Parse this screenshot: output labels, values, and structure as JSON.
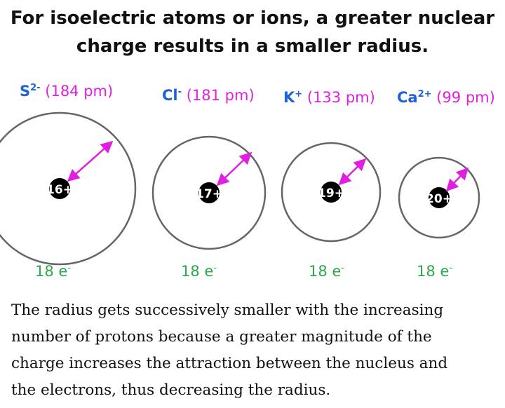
{
  "title": {
    "line1": "For isoelectric atoms or ions, a greater nuclear",
    "line2": "charge results in a smaller radius."
  },
  "ions": [
    {
      "symbol": "S",
      "charge": "2-",
      "radius_label": "(184 pm)",
      "nucleus_label": "16+",
      "electrons_value": "18 e",
      "electrons_sup": "-",
      "radius_pm": 184
    },
    {
      "symbol": "Cl",
      "charge": "-",
      "radius_label": "(181 pm)",
      "nucleus_label": "17+",
      "electrons_value": "18 e",
      "electrons_sup": "-",
      "radius_pm": 181
    },
    {
      "symbol": "K",
      "charge": "+",
      "radius_label": "(133 pm)",
      "nucleus_label": "19+",
      "electrons_value": "18 e",
      "electrons_sup": "-",
      "radius_pm": 133
    },
    {
      "symbol": "Ca",
      "charge": "2+",
      "radius_label": "(99 pm)",
      "nucleus_label": "20+",
      "electrons_value": "18 e",
      "electrons_sup": "-",
      "radius_pm": 99
    }
  ],
  "explanation": {
    "line1": "The radius gets successively smaller with the increasing",
    "line2": "number of protons because a greater magnitude of the",
    "line3": "charge increases the attraction between the nucleus and",
    "line4": "the electrons, thus decreasing the radius."
  },
  "colors": {
    "symbol": "#1f63d6",
    "radius": "#e01fe0",
    "electrons": "#2aa84a",
    "arrow": "#e01fe0",
    "nucleus": "#000000",
    "shell": "#666666"
  }
}
